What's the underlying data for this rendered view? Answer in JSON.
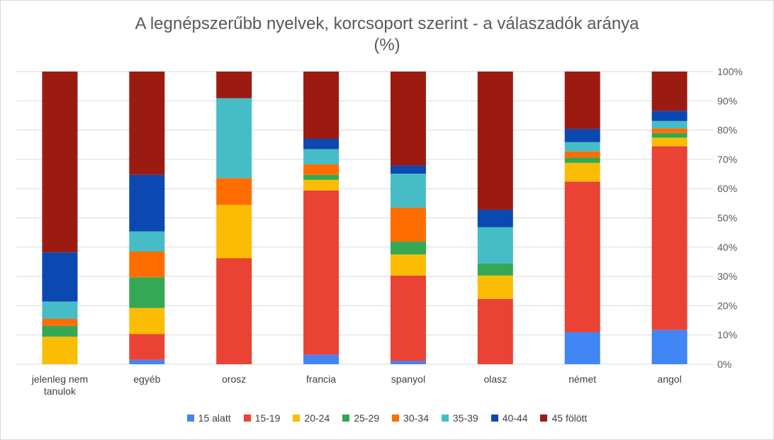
{
  "chart_data": {
    "type": "bar",
    "stacked": "percent",
    "title": "A legnépszerűbb nyelvek, korcsoport szerint - a válaszadók aránya",
    "title_line2": "(%)",
    "categories": [
      "jelenleg nem|tanulok",
      "egyéb",
      "orosz",
      "francia",
      "spanyol",
      "olasz",
      "német",
      "angol"
    ],
    "y_ticks": [
      "0%",
      "10%",
      "20%",
      "30%",
      "40%",
      "50%",
      "60%",
      "70%",
      "80%",
      "90%",
      "100%"
    ],
    "ylim": [
      0,
      100
    ],
    "y_axis_side": "right",
    "grid": true,
    "legend_placement": "bottom",
    "series": [
      {
        "name": "15 alatt",
        "color": "#4285f4",
        "values": [
          0,
          1.5,
          0,
          3.2,
          1.1,
          0,
          10.9,
          11.7
        ]
      },
      {
        "name": "15-19",
        "color": "#ea4335",
        "values": [
          0,
          8.8,
          36.2,
          56.2,
          29.2,
          22.3,
          51.5,
          62.8
        ]
      },
      {
        "name": "20-24",
        "color": "#fbbc04",
        "values": [
          9.4,
          8.9,
          18.2,
          3.6,
          7.2,
          8.0,
          6.4,
          2.9
        ]
      },
      {
        "name": "25-29",
        "color": "#34a853",
        "values": [
          3.7,
          10.5,
          0,
          1.7,
          4.4,
          4.1,
          1.8,
          1.6
        ]
      },
      {
        "name": "30-34",
        "color": "#ff6d01",
        "values": [
          2.4,
          8.8,
          9.2,
          3.6,
          11.6,
          0,
          2.1,
          1.6
        ]
      },
      {
        "name": "35-39",
        "color": "#46bdc6",
        "values": [
          5.9,
          6.9,
          27.3,
          5.2,
          11.6,
          12.4,
          3.2,
          2.5
        ]
      },
      {
        "name": "40-44",
        "color": "#0b48b1",
        "values": [
          16.8,
          19.3,
          0,
          3.5,
          2.8,
          6.0,
          4.5,
          3.5
        ]
      },
      {
        "name": "45 fölött",
        "color": "#9c1b10",
        "values": [
          61.8,
          35.3,
          9.1,
          23.0,
          32.1,
          47.2,
          19.6,
          13.4
        ]
      }
    ]
  }
}
